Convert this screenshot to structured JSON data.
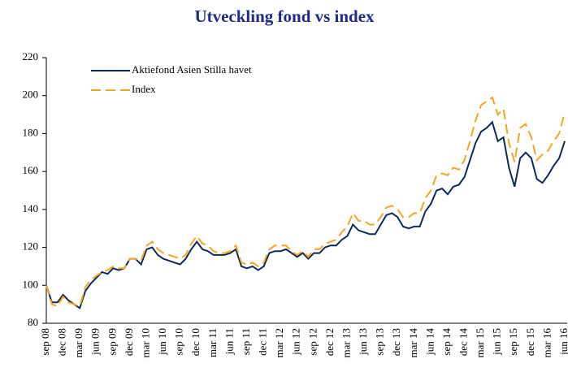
{
  "chart_data": {
    "type": "line",
    "title": "Utveckling fond vs index",
    "categories": [
      "sep 08",
      null,
      null,
      "dec 08",
      null,
      null,
      "mar 09",
      null,
      null,
      "jun 09",
      null,
      null,
      "sep 09",
      null,
      null,
      "dec 09",
      null,
      null,
      "mar 10",
      null,
      null,
      "jun 10",
      null,
      null,
      "sep 10",
      null,
      null,
      "dec 10",
      null,
      null,
      "mar 11",
      null,
      null,
      "jun 11",
      null,
      null,
      "sep 11",
      null,
      null,
      "dec 11",
      null,
      null,
      "mar 12",
      null,
      null,
      "jun 12",
      null,
      null,
      "sep 12",
      null,
      null,
      "dec 12",
      null,
      null,
      "mar 13",
      null,
      null,
      "jun 13",
      null,
      null,
      "sep 13",
      null,
      null,
      "dec 13",
      null,
      null,
      "mar 14",
      null,
      null,
      "jun 14",
      null,
      null,
      "sep 14",
      null,
      null,
      "dec 14",
      null,
      null,
      "mar 15",
      null,
      null,
      "jun 15",
      null,
      null,
      "sep 15",
      null,
      null,
      "dec 15",
      null,
      null,
      "mar 16",
      null,
      null,
      "jun 16"
    ],
    "series": [
      {
        "name": "Aktiefond Asien Stilla havet",
        "color": "#0d2a5c",
        "linestyle": "solid",
        "values": [
          100,
          91,
          91,
          95,
          92,
          90,
          88,
          97,
          101,
          104,
          107,
          106,
          109,
          108,
          109,
          114,
          114,
          111,
          119,
          120,
          116,
          114,
          113,
          112,
          111,
          114,
          119,
          123,
          119,
          118,
          116,
          116,
          116,
          117,
          119,
          110,
          109,
          110,
          108,
          110,
          117,
          118,
          118,
          119,
          117,
          115,
          117,
          114,
          117,
          117,
          120,
          121,
          121,
          124,
          126,
          132,
          129,
          128,
          127,
          127,
          132,
          137,
          138,
          136,
          131,
          130,
          131,
          131,
          139,
          143,
          150,
          151,
          148,
          152,
          153,
          157,
          166,
          175,
          181,
          183,
          186,
          176,
          178,
          162,
          152,
          167,
          170,
          167,
          156,
          154,
          158,
          163,
          167,
          176
        ]
      },
      {
        "name": "Index",
        "color": "#f5a623",
        "linestyle": "dashed",
        "values": [
          100,
          90,
          89,
          94,
          91,
          90,
          89,
          99,
          103,
          105,
          107,
          108,
          110,
          109,
          109,
          114,
          114,
          113,
          121,
          123,
          119,
          117,
          116,
          115,
          114,
          116,
          122,
          126,
          122,
          121,
          118,
          117,
          117,
          118,
          121,
          112,
          111,
          112,
          110,
          112,
          119,
          121,
          121,
          121,
          118,
          116,
          118,
          115,
          119,
          119,
          122,
          123,
          124,
          128,
          131,
          138,
          134,
          134,
          132,
          132,
          136,
          141,
          142,
          140,
          136,
          136,
          138,
          138,
          146,
          150,
          158,
          159,
          158,
          162,
          161,
          166,
          176,
          187,
          195,
          197,
          199,
          190,
          193,
          175,
          165,
          183,
          185,
          178,
          166,
          169,
          171,
          176,
          180,
          191
        ]
      }
    ],
    "ylim": [
      80,
      220
    ],
    "yticks": [
      80,
      100,
      120,
      140,
      160,
      180,
      200,
      220
    ],
    "grid": false,
    "legend": "upper left"
  }
}
